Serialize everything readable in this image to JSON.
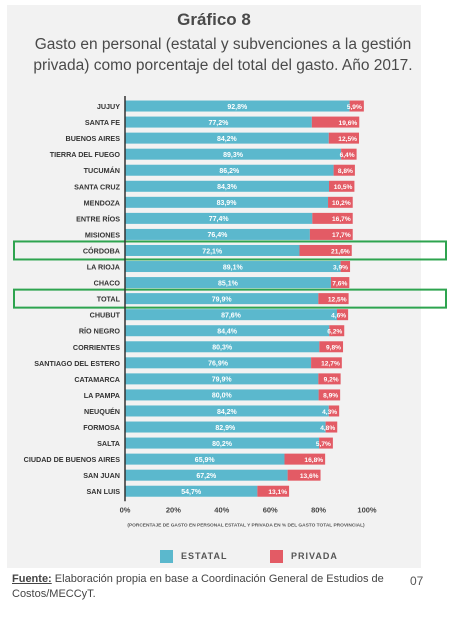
{
  "figure": {
    "title": "Gráfico 8",
    "subtitle": "Gasto en personal (estatal y subvenciones a la gestión privada) como porcentaje del total del gasto. Año 2017.",
    "source_label": "Fuente:",
    "source_text": "Elaboración propia en base a Coordinación General de Estudios de Costos/MECCyT.",
    "page_number": "07"
  },
  "colors": {
    "estatal": "#5bb8cd",
    "privada": "#e35b65",
    "highlight": "#2ea44f",
    "axis": "#333333"
  },
  "chart_data": {
    "type": "bar",
    "orientation": "horizontal",
    "stacked": true,
    "categories": [
      "JUJUY",
      "SANTA FE",
      "BUENOS AIRES",
      "TIERRA DEL FUEGO",
      "TUCUMÁN",
      "SANTA CRUZ",
      "MENDOZA",
      "ENTRE RÍOS",
      "MISIONES",
      "CÓRDOBA",
      "LA RIOJA",
      "CHACO",
      "TOTAL",
      "CHUBUT",
      "RÍO NEGRO",
      "CORRIENTES",
      "SANTIAGO DEL ESTERO",
      "CATAMARCA",
      "LA PAMPA",
      "NEUQUÉN",
      "FORMOSA",
      "SALTA",
      "CIUDAD DE BUENOS AIRES",
      "SAN JUAN",
      "SAN LUIS"
    ],
    "series": [
      {
        "name": "ESTATAL",
        "values": [
          92.8,
          77.2,
          84.2,
          89.3,
          86.2,
          84.3,
          83.9,
          77.4,
          76.4,
          72.1,
          89.1,
          85.1,
          79.9,
          87.6,
          84.4,
          80.3,
          76.9,
          79.9,
          80.0,
          84.2,
          82.9,
          80.2,
          65.9,
          67.2,
          54.7
        ],
        "labels": [
          "92,8%",
          "77,2%",
          "84,2%",
          "89,3%",
          "86,2%",
          "84,3%",
          "83,9%",
          "77,4%",
          "76,4%",
          "72,1%",
          "89,1%",
          "85,1%",
          "79,9%",
          "87,6%",
          "84,4%",
          "80,3%",
          "76,9%",
          "79,9%",
          "80,0%",
          "84,2%",
          "82,9%",
          "80,2%",
          "65,9%",
          "67,2%",
          "54,7%"
        ]
      },
      {
        "name": "PRIVADA",
        "values": [
          5.9,
          19.6,
          12.5,
          6.4,
          8.8,
          10.5,
          10.2,
          16.7,
          17.7,
          21.6,
          3.9,
          7.6,
          12.5,
          4.6,
          6.2,
          9.8,
          12.7,
          9.2,
          8.9,
          4.3,
          4.8,
          5.7,
          16.8,
          13.6,
          13.1
        ],
        "labels": [
          "5,9%",
          "19,6%",
          "12,5%",
          "6,4%",
          "8,8%",
          "10,5%",
          "10,2%",
          "16,7%",
          "17,7%",
          "21,6%",
          "3,9%",
          "7,6%",
          "12,5%",
          "4,6%",
          "6,2%",
          "9,8%",
          "12,7%",
          "9,2%",
          "8,9%",
          "4,3%",
          "4,8%",
          "5,7%",
          "16,8%",
          "13,6%",
          "13,1%"
        ]
      }
    ],
    "highlighted": [
      "CÓRDOBA",
      "TOTAL"
    ],
    "xlim": [
      0,
      100
    ],
    "xticks": [
      "0%",
      "20%",
      "40%",
      "60%",
      "80%",
      "100%"
    ],
    "xlabel": "(PORCENTAJE DE GASTO EN PERSONAL ESTATAL Y PRIVADA EN % DEL GASTO TOTAL PROVINCIAL)",
    "legend_position": "bottom"
  }
}
